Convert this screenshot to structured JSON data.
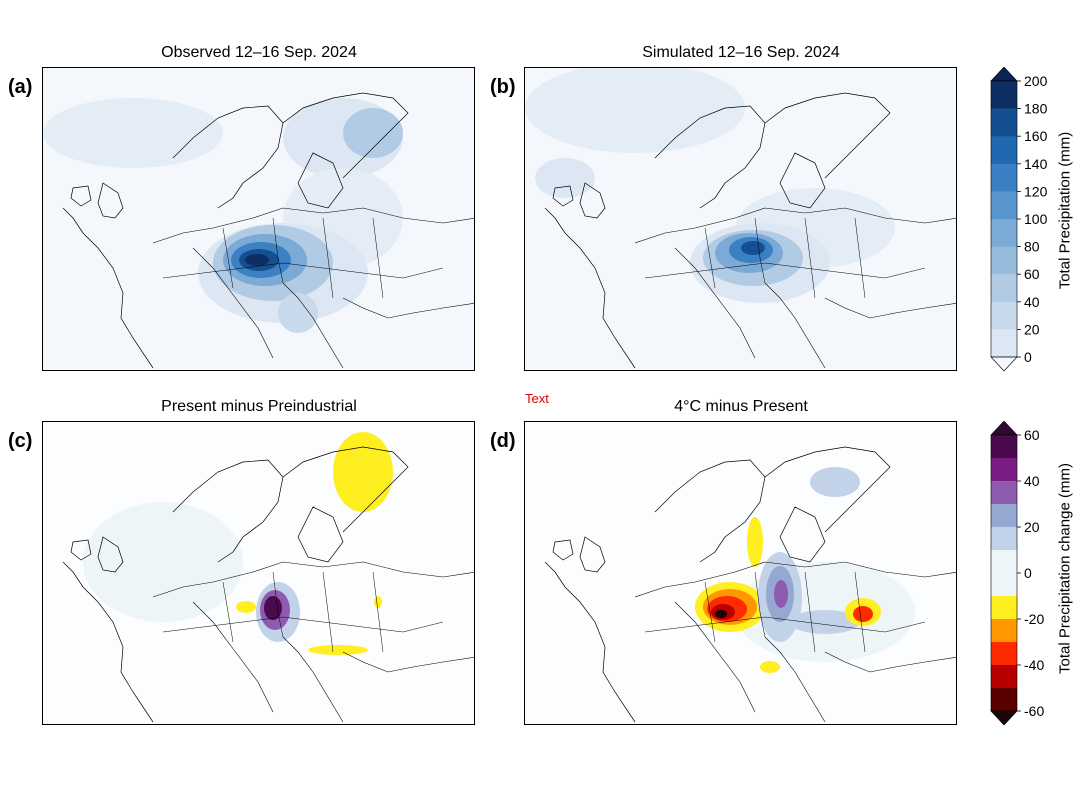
{
  "panels": [
    {
      "label": "(a)",
      "title": "Observed 12–16 Sep. 2024"
    },
    {
      "label": "(b)",
      "title": "Simulated 12–16 Sep. 2024"
    },
    {
      "label": "(c)",
      "title": "Present minus Preindustrial"
    },
    {
      "label": "(d)",
      "title": "4°C minus Present"
    }
  ],
  "annotation": "Text",
  "colorbars": [
    {
      "label": "Total Precipitation (mm)",
      "ticks": [
        "200",
        "180",
        "160",
        "140",
        "120",
        "100",
        "80",
        "60",
        "40",
        "20",
        "0"
      ],
      "colors": [
        "#0d2f63",
        "#14508f",
        "#2068b0",
        "#3b80c2",
        "#5895cc",
        "#7aaad5",
        "#97bbdd",
        "#b1cbe4",
        "#c8d9ec",
        "#dde7f3"
      ],
      "extend_top": "#0b2450",
      "extend_bottom": "#f4f8fc"
    },
    {
      "label": "Total Precipitation change (mm)",
      "ticks": [
        "60",
        "40",
        "20",
        "0",
        "-20",
        "-40",
        "-60"
      ],
      "colors": [
        "#4a0a4d",
        "#7a1e86",
        "#8e5cae",
        "#95a8d2",
        "#c2d2e8",
        "#eef5f8",
        "#eef5f8",
        "#ffee20",
        "#ff9800",
        "#ff2b00",
        "#b80000",
        "#5a0000"
      ],
      "extend_top": "#300834",
      "extend_bottom": "#1a0606"
    }
  ],
  "chart_data": {
    "type": "heatmap",
    "panels": [
      {
        "title": "Observed 12–16 Sep. 2024",
        "variable": "Total Precipitation (mm)",
        "range": [
          0,
          200
        ]
      },
      {
        "title": "Simulated 12–16 Sep. 2024",
        "variable": "Total Precipitation (mm)",
        "range": [
          0,
          200
        ]
      },
      {
        "title": "Present minus Preindustrial",
        "variable": "Total Precipitation change (mm)",
        "range": [
          -60,
          60
        ]
      },
      {
        "title": "4°C minus Present",
        "variable": "Total Precipitation change (mm)",
        "range": [
          -60,
          60
        ]
      }
    ]
  }
}
